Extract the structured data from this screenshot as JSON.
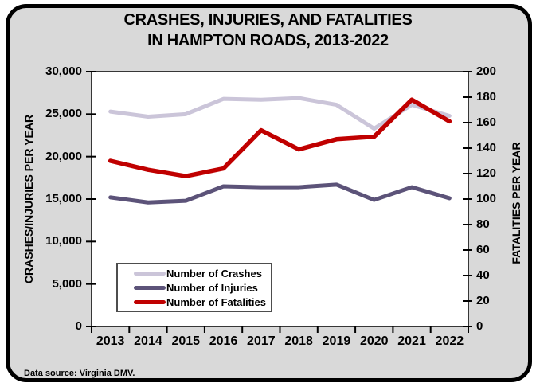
{
  "title": {
    "line1": "CRASHES, INJURIES, AND FATALITIES",
    "line2": "IN HAMPTON ROADS, 2013-2022"
  },
  "footer": {
    "text": "Data source:  Virginia DMV."
  },
  "axes": {
    "left": {
      "title": "CRASHES/INJURIES PER YEAR",
      "tick_labels_top_to_bottom": [
        "30,000",
        "25,000",
        "20,000",
        "15,000",
        "10,000",
        "5,000",
        "0"
      ]
    },
    "right": {
      "title": "FATALITIES PER YEAR",
      "tick_labels_top_to_bottom": [
        "200",
        "180",
        "160",
        "140",
        "120",
        "100",
        "80",
        "60",
        "40",
        "20",
        "0"
      ]
    },
    "x": {
      "labels": [
        "2013",
        "2014",
        "2015",
        "2016",
        "2017",
        "2018",
        "2019",
        "2020",
        "2021",
        "2022"
      ]
    }
  },
  "legend": {
    "items": [
      {
        "label": "Number of Crashes",
        "color": "#cbc5d9"
      },
      {
        "label": "Number of Injuries",
        "color": "#5c5379"
      },
      {
        "label": "Number of Fatalities",
        "color": "#c00000"
      }
    ]
  },
  "colors": {
    "card_background": "#d9d9d9",
    "card_border": "#000000",
    "plot_background": "#ffffff",
    "axis_line": "#000000"
  },
  "chart_data": {
    "type": "line",
    "title": "CRASHES, INJURIES, AND FATALITIES IN HAMPTON ROADS, 2013-2022",
    "categories": [
      2013,
      2014,
      2015,
      2016,
      2017,
      2018,
      2019,
      2020,
      2021,
      2022
    ],
    "series": [
      {
        "name": "Number of Crashes",
        "axis": "left",
        "color": "#cbc5d9",
        "stroke_width": 5,
        "values": [
          25300,
          24700,
          25000,
          26800,
          26700,
          26900,
          26100,
          23300,
          26100,
          24800
        ]
      },
      {
        "name": "Number of Injuries",
        "axis": "left",
        "color": "#5c5379",
        "stroke_width": 5,
        "values": [
          15200,
          14600,
          14800,
          16500,
          16400,
          16400,
          16700,
          14900,
          16400,
          15100
        ]
      },
      {
        "name": "Number of Fatalities",
        "axis": "right",
        "color": "#c00000",
        "stroke_width": 5.5,
        "values": [
          130,
          123,
          118,
          124,
          154,
          139,
          147,
          149,
          178,
          161
        ]
      }
    ],
    "ylabel_left": "CRASHES/INJURIES PER YEAR",
    "ylabel_right": "FATALITIES PER YEAR",
    "ylim_left": [
      0,
      30000
    ],
    "ylim_right": [
      0,
      200
    ],
    "grid": false,
    "legend_position": "inside-bottom-left"
  }
}
